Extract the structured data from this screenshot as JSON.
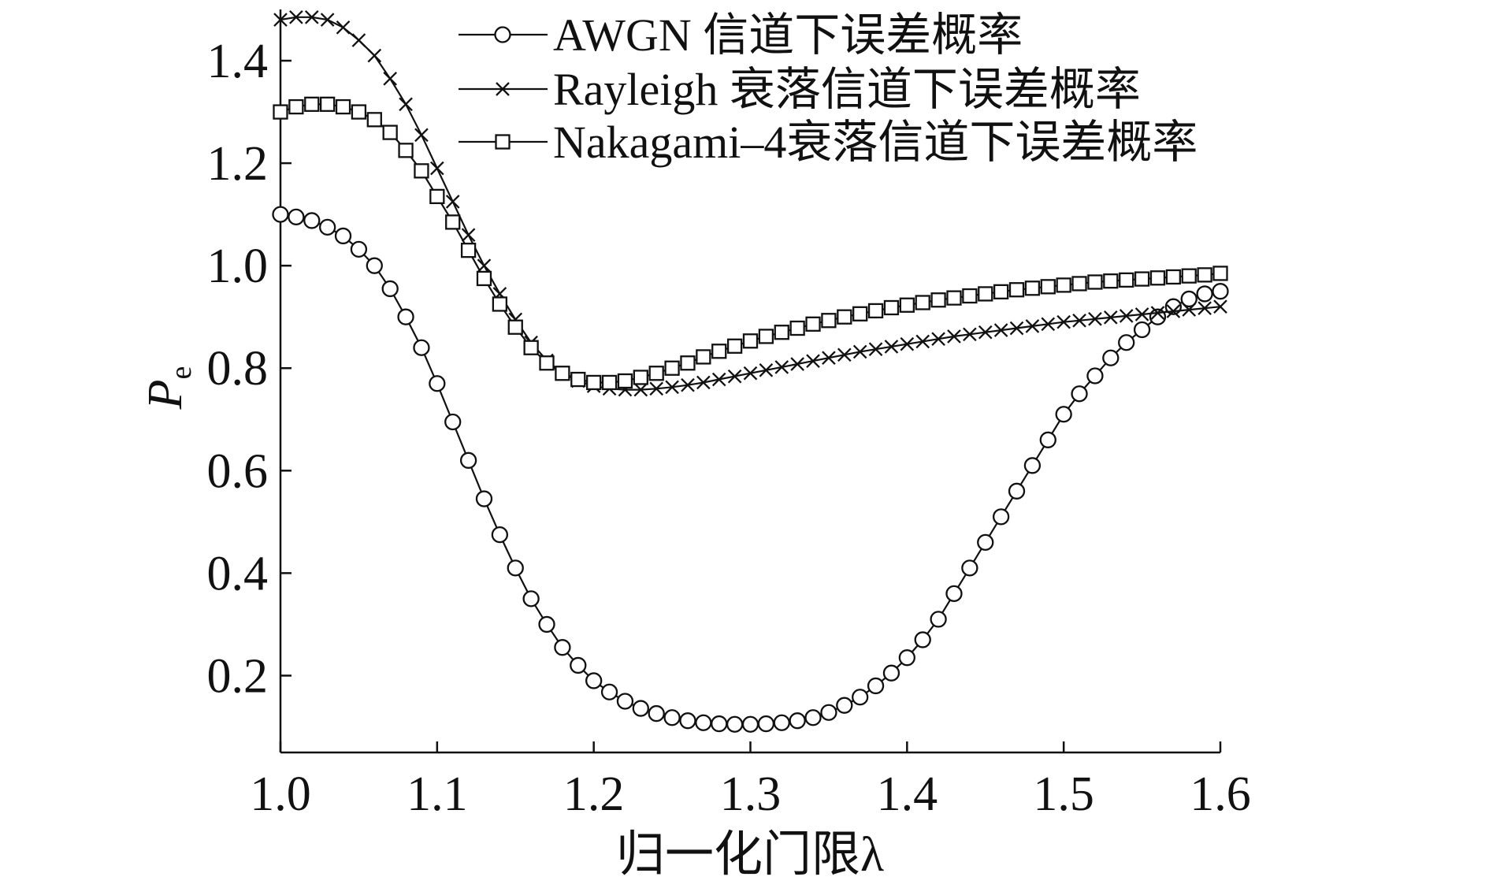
{
  "chart_data": {
    "type": "line",
    "xlabel": "归一化门限λ",
    "ylabel": "P",
    "ylabel_subscript": "e",
    "xlim": [
      1.0,
      1.6
    ],
    "ylim": [
      0.05,
      1.5
    ],
    "xticks": [
      1.0,
      1.1,
      1.2,
      1.3,
      1.4,
      1.5,
      1.6
    ],
    "xtick_labels": [
      "1.0",
      "1.1",
      "1.2",
      "1.3",
      "1.4",
      "1.5",
      "1.6"
    ],
    "yticks": [
      0.2,
      0.4,
      0.6,
      0.8,
      1.0,
      1.2,
      1.4
    ],
    "ytick_labels": [
      "0.2",
      "0.4",
      "0.6",
      "0.8",
      "1.0",
      "1.2",
      "1.4"
    ],
    "grid": false,
    "legend_position": "top-right",
    "line_color": "#111111",
    "series": [
      {
        "name": "AWGN 信道下误差概率",
        "marker": "circle",
        "x": [
          1.0,
          1.01,
          1.02,
          1.03,
          1.04,
          1.05,
          1.06,
          1.07,
          1.08,
          1.09,
          1.1,
          1.11,
          1.12,
          1.13,
          1.14,
          1.15,
          1.16,
          1.17,
          1.18,
          1.19,
          1.2,
          1.21,
          1.22,
          1.23,
          1.24,
          1.25,
          1.26,
          1.27,
          1.28,
          1.29,
          1.3,
          1.31,
          1.32,
          1.33,
          1.34,
          1.35,
          1.36,
          1.37,
          1.38,
          1.39,
          1.4,
          1.41,
          1.42,
          1.43,
          1.44,
          1.45,
          1.46,
          1.47,
          1.48,
          1.49,
          1.5,
          1.51,
          1.52,
          1.53,
          1.54,
          1.55,
          1.56,
          1.57,
          1.58,
          1.59,
          1.6
        ],
        "y": [
          1.1,
          1.095,
          1.088,
          1.075,
          1.058,
          1.032,
          1.0,
          0.955,
          0.9,
          0.84,
          0.77,
          0.695,
          0.62,
          0.545,
          0.475,
          0.41,
          0.35,
          0.3,
          0.255,
          0.22,
          0.19,
          0.168,
          0.15,
          0.136,
          0.126,
          0.118,
          0.112,
          0.108,
          0.106,
          0.105,
          0.105,
          0.106,
          0.108,
          0.112,
          0.118,
          0.128,
          0.142,
          0.158,
          0.18,
          0.205,
          0.235,
          0.27,
          0.31,
          0.36,
          0.41,
          0.46,
          0.51,
          0.56,
          0.61,
          0.66,
          0.71,
          0.75,
          0.785,
          0.82,
          0.85,
          0.875,
          0.9,
          0.92,
          0.935,
          0.945,
          0.95
        ]
      },
      {
        "name": "Rayleigh 衰落信道下误差概率",
        "marker": "x",
        "x": [
          1.0,
          1.01,
          1.02,
          1.03,
          1.04,
          1.05,
          1.06,
          1.07,
          1.08,
          1.09,
          1.1,
          1.11,
          1.12,
          1.13,
          1.14,
          1.15,
          1.16,
          1.17,
          1.18,
          1.19,
          1.2,
          1.21,
          1.22,
          1.23,
          1.24,
          1.25,
          1.26,
          1.27,
          1.28,
          1.29,
          1.3,
          1.31,
          1.32,
          1.33,
          1.34,
          1.35,
          1.36,
          1.37,
          1.38,
          1.39,
          1.4,
          1.41,
          1.42,
          1.43,
          1.44,
          1.45,
          1.46,
          1.47,
          1.48,
          1.49,
          1.5,
          1.51,
          1.52,
          1.53,
          1.54,
          1.55,
          1.56,
          1.57,
          1.58,
          1.59,
          1.6
        ],
        "y": [
          1.48,
          1.485,
          1.485,
          1.48,
          1.465,
          1.44,
          1.41,
          1.365,
          1.315,
          1.255,
          1.19,
          1.125,
          1.06,
          1.0,
          0.945,
          0.895,
          0.85,
          0.815,
          0.79,
          0.775,
          0.765,
          0.76,
          0.758,
          0.758,
          0.76,
          0.763,
          0.767,
          0.772,
          0.778,
          0.784,
          0.79,
          0.796,
          0.802,
          0.808,
          0.814,
          0.82,
          0.826,
          0.832,
          0.837,
          0.842,
          0.847,
          0.852,
          0.857,
          0.862,
          0.866,
          0.87,
          0.874,
          0.878,
          0.882,
          0.886,
          0.89,
          0.893,
          0.896,
          0.899,
          0.902,
          0.905,
          0.908,
          0.911,
          0.914,
          0.917,
          0.92
        ]
      },
      {
        "name": "Nakagami–4衰落信道下误差概率",
        "marker": "square",
        "x": [
          1.0,
          1.01,
          1.02,
          1.03,
          1.04,
          1.05,
          1.06,
          1.07,
          1.08,
          1.09,
          1.1,
          1.11,
          1.12,
          1.13,
          1.14,
          1.15,
          1.16,
          1.17,
          1.18,
          1.19,
          1.2,
          1.21,
          1.22,
          1.23,
          1.24,
          1.25,
          1.26,
          1.27,
          1.28,
          1.29,
          1.3,
          1.31,
          1.32,
          1.33,
          1.34,
          1.35,
          1.36,
          1.37,
          1.38,
          1.39,
          1.4,
          1.41,
          1.42,
          1.43,
          1.44,
          1.45,
          1.46,
          1.47,
          1.48,
          1.49,
          1.5,
          1.51,
          1.52,
          1.53,
          1.54,
          1.55,
          1.56,
          1.57,
          1.58,
          1.59,
          1.6
        ],
        "y": [
          1.3,
          1.31,
          1.315,
          1.315,
          1.31,
          1.3,
          1.285,
          1.26,
          1.225,
          1.185,
          1.135,
          1.085,
          1.03,
          0.975,
          0.925,
          0.88,
          0.84,
          0.81,
          0.79,
          0.778,
          0.772,
          0.772,
          0.775,
          0.782,
          0.79,
          0.8,
          0.81,
          0.822,
          0.833,
          0.843,
          0.853,
          0.862,
          0.87,
          0.878,
          0.886,
          0.893,
          0.9,
          0.906,
          0.912,
          0.918,
          0.923,
          0.928,
          0.933,
          0.937,
          0.941,
          0.945,
          0.949,
          0.953,
          0.956,
          0.959,
          0.962,
          0.965,
          0.968,
          0.97,
          0.972,
          0.974,
          0.976,
          0.978,
          0.98,
          0.982,
          0.985
        ]
      }
    ]
  }
}
